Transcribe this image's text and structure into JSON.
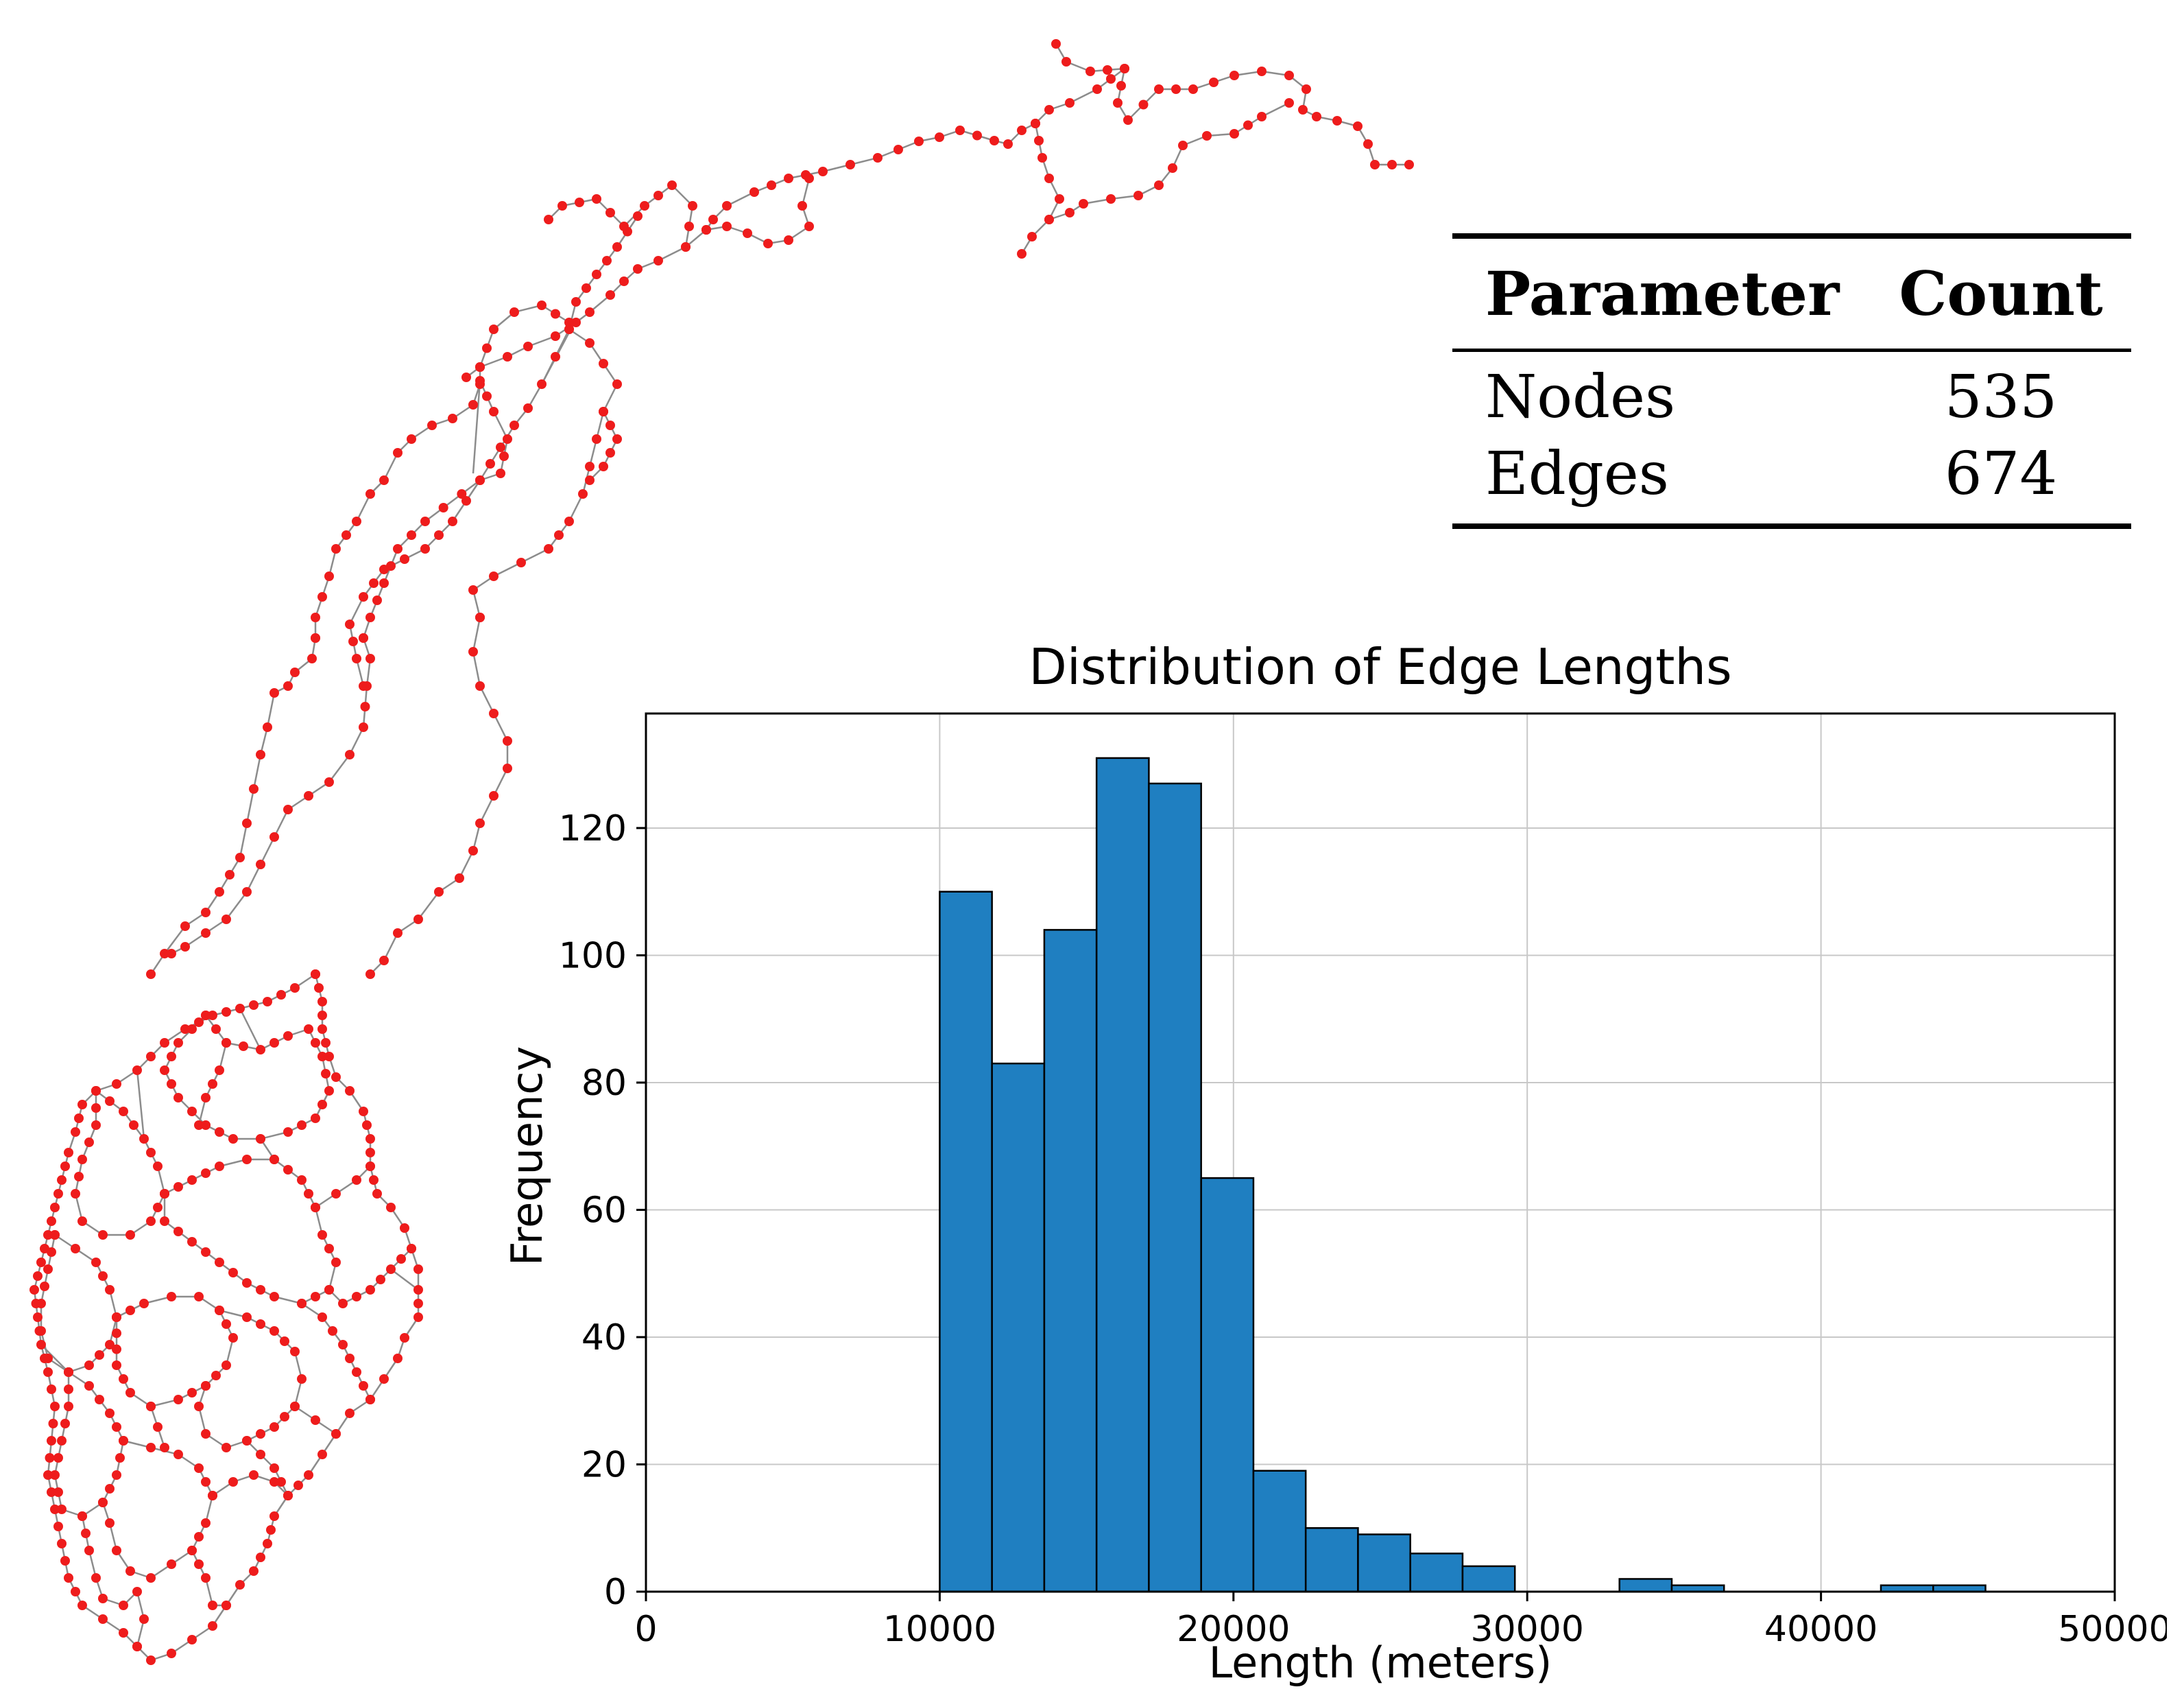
{
  "table": {
    "header": {
      "col1": "Parameter",
      "col2": "Count"
    },
    "rows": [
      {
        "label": "Nodes",
        "value": "535"
      },
      {
        "label": "Edges",
        "value": "674"
      }
    ]
  },
  "network": {
    "node_color": "#ee1c1c",
    "edge_color": "#8c8c8c"
  },
  "chart_data": {
    "type": "bar",
    "title": "Distribution of Edge Lengths",
    "xlabel": "Length (meters)",
    "ylabel": "Frequency",
    "xlim": [
      0,
      50000
    ],
    "ylim": [
      0,
      138
    ],
    "xticks": [
      0,
      10000,
      20000,
      30000,
      40000,
      50000
    ],
    "yticks": [
      0,
      20,
      40,
      60,
      80,
      100,
      120
    ],
    "grid": true,
    "bar_color": "#1f7fc1",
    "bin_width": 1780,
    "bins": [
      {
        "start": 10000,
        "end": 11780,
        "count": 110
      },
      {
        "start": 11780,
        "end": 13560,
        "count": 83
      },
      {
        "start": 13560,
        "end": 15340,
        "count": 104
      },
      {
        "start": 15340,
        "end": 17120,
        "count": 131
      },
      {
        "start": 17120,
        "end": 18900,
        "count": 127
      },
      {
        "start": 18900,
        "end": 20680,
        "count": 65
      },
      {
        "start": 20680,
        "end": 22460,
        "count": 19
      },
      {
        "start": 22460,
        "end": 24240,
        "count": 10
      },
      {
        "start": 24240,
        "end": 26020,
        "count": 9
      },
      {
        "start": 26020,
        "end": 27800,
        "count": 6
      },
      {
        "start": 27800,
        "end": 29580,
        "count": 4
      },
      {
        "start": 33140,
        "end": 34920,
        "count": 2
      },
      {
        "start": 34920,
        "end": 36700,
        "count": 1
      },
      {
        "start": 42040,
        "end": 43820,
        "count": 1
      },
      {
        "start": 43820,
        "end": 45600,
        "count": 1
      }
    ]
  }
}
